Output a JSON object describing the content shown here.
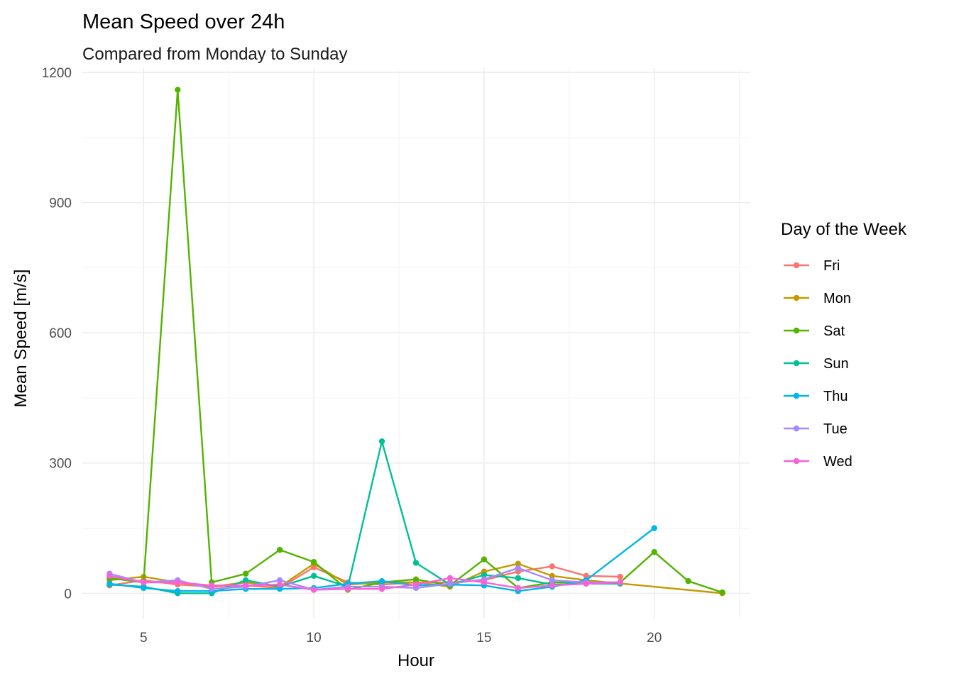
{
  "chart_data": {
    "type": "line",
    "title": "Mean Speed over 24h",
    "subtitle": "Compared from Monday to Sunday",
    "xlabel": "Hour",
    "ylabel": "Mean Speed [m/s]",
    "xlim": [
      3.2,
      22.8
    ],
    "ylim": [
      -60,
      1210
    ],
    "x_ticks": [
      5,
      10,
      15,
      20
    ],
    "y_ticks": [
      0,
      300,
      600,
      900,
      1200
    ],
    "x_minor": [
      7.5,
      12.5,
      17.5,
      22.5
    ],
    "y_minor": [
      150,
      450,
      750,
      1050
    ],
    "grid": true,
    "legend": {
      "title": "Day of the Week",
      "position": "right"
    },
    "series": [
      {
        "name": "Fri",
        "color": "#F8766D",
        "points": [
          [
            4,
            18
          ],
          [
            5,
            30
          ],
          [
            6,
            20
          ],
          [
            7,
            15
          ],
          [
            8,
            18
          ],
          [
            9,
            12
          ],
          [
            10,
            60
          ],
          [
            11,
            25
          ],
          [
            12,
            20
          ],
          [
            13,
            25
          ],
          [
            14,
            25
          ],
          [
            15,
            30
          ],
          [
            16,
            50
          ],
          [
            17,
            62
          ],
          [
            18,
            40
          ],
          [
            19,
            38
          ]
        ]
      },
      {
        "name": "Mon",
        "color": "#C49A00",
        "points": [
          [
            4,
            30
          ],
          [
            5,
            38
          ],
          [
            6,
            25
          ],
          [
            7,
            15
          ],
          [
            8,
            25
          ],
          [
            9,
            15
          ],
          [
            10,
            68
          ],
          [
            11,
            20
          ],
          [
            12,
            25
          ],
          [
            13,
            25
          ],
          [
            14,
            15
          ],
          [
            15,
            50
          ],
          [
            16,
            68
          ],
          [
            17,
            40
          ],
          [
            18,
            30
          ],
          [
            22,
            0
          ]
        ]
      },
      {
        "name": "Sat",
        "color": "#53B400",
        "points": [
          [
            4,
            35
          ],
          [
            5,
            25
          ],
          [
            6,
            1160
          ],
          [
            7,
            25
          ],
          [
            8,
            45
          ],
          [
            9,
            100
          ],
          [
            10,
            72
          ],
          [
            11,
            8
          ],
          [
            12,
            25
          ],
          [
            13,
            32
          ],
          [
            14,
            18
          ],
          [
            15,
            78
          ],
          [
            16,
            12
          ],
          [
            17,
            25
          ],
          [
            18,
            25
          ],
          [
            19,
            25
          ],
          [
            20,
            95
          ],
          [
            21,
            28
          ],
          [
            22,
            2
          ]
        ]
      },
      {
        "name": "Sun",
        "color": "#00C094",
        "points": [
          [
            4,
            20
          ],
          [
            5,
            15
          ],
          [
            6,
            0
          ],
          [
            7,
            0
          ],
          [
            8,
            30
          ],
          [
            9,
            15
          ],
          [
            10,
            40
          ],
          [
            11,
            15
          ],
          [
            12,
            350
          ],
          [
            13,
            70
          ],
          [
            14,
            20
          ],
          [
            15,
            42
          ],
          [
            16,
            35
          ],
          [
            17,
            20
          ],
          [
            18,
            22
          ],
          [
            19,
            22
          ]
        ]
      },
      {
        "name": "Thu",
        "color": "#00B6EB",
        "points": [
          [
            4,
            22
          ],
          [
            5,
            12
          ],
          [
            6,
            5
          ],
          [
            7,
            5
          ],
          [
            8,
            10
          ],
          [
            9,
            10
          ],
          [
            10,
            12
          ],
          [
            11,
            22
          ],
          [
            12,
            28
          ],
          [
            13,
            18
          ],
          [
            14,
            20
          ],
          [
            15,
            18
          ],
          [
            16,
            5
          ],
          [
            17,
            15
          ],
          [
            18,
            30
          ],
          [
            20,
            150
          ]
        ]
      },
      {
        "name": "Tue",
        "color": "#A58AFF",
        "points": [
          [
            4,
            45
          ],
          [
            5,
            25
          ],
          [
            6,
            30
          ],
          [
            7,
            10
          ],
          [
            8,
            15
          ],
          [
            9,
            30
          ],
          [
            10,
            8
          ],
          [
            11,
            15
          ],
          [
            12,
            15
          ],
          [
            13,
            12
          ],
          [
            14,
            22
          ],
          [
            15,
            32
          ],
          [
            16,
            58
          ],
          [
            17,
            30
          ],
          [
            18,
            25
          ],
          [
            19,
            25
          ]
        ]
      },
      {
        "name": "Wed",
        "color": "#FB61D7",
        "points": [
          [
            4,
            40
          ],
          [
            5,
            25
          ],
          [
            6,
            25
          ],
          [
            7,
            18
          ],
          [
            8,
            18
          ],
          [
            9,
            20
          ],
          [
            10,
            8
          ],
          [
            11,
            10
          ],
          [
            12,
            10
          ],
          [
            13,
            20
          ],
          [
            14,
            35
          ],
          [
            15,
            25
          ],
          [
            16,
            12
          ],
          [
            17,
            18
          ],
          [
            18,
            22
          ],
          [
            19,
            25
          ]
        ]
      }
    ]
  }
}
